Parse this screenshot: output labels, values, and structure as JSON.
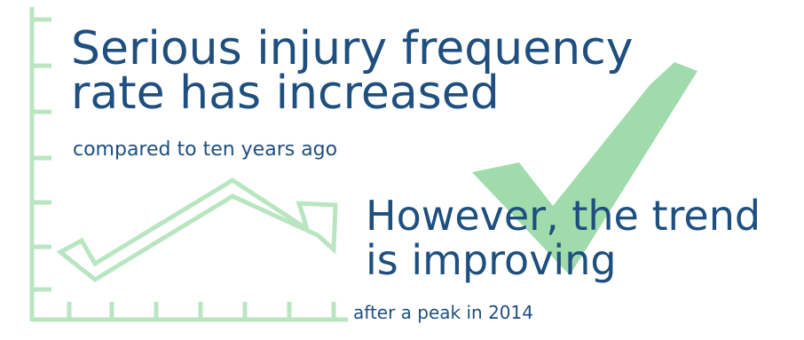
{
  "headline": {
    "main": "Serious injury frequency rate has increased",
    "sub": "compared to ten years ago"
  },
  "trend": {
    "main": "However, the trend is improving",
    "sub": "after a peak in 2014"
  },
  "colors": {
    "text": "#1e4f7e",
    "axis_green": "#b9e6c0",
    "check_green": "#9fdbab"
  },
  "icons": [
    "zigzag-arrow-icon",
    "checkmark-icon"
  ]
}
